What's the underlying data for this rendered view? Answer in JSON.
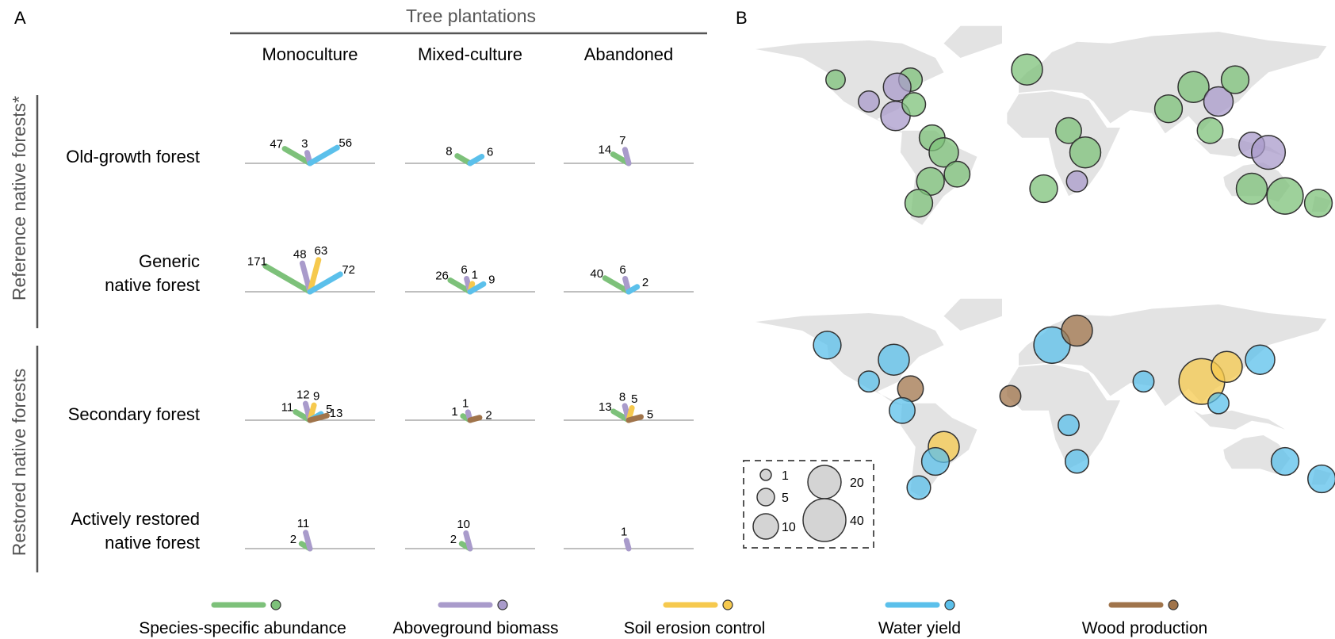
{
  "panels": {
    "a": "A",
    "b": "B"
  },
  "header": {
    "group": "Tree plantations",
    "columns": [
      "Monoculture",
      "Mixed-culture",
      "Abandoned"
    ]
  },
  "side_labels": {
    "reference": "Reference native forests*",
    "restored": "Restored native forests"
  },
  "rows": [
    {
      "label_lines": [
        "Old-growth forest"
      ]
    },
    {
      "label_lines": [
        "Generic",
        "native forest"
      ]
    },
    {
      "label_lines": [
        "Secondary forest"
      ]
    },
    {
      "label_lines": [
        "Actively restored",
        "native forest"
      ]
    }
  ],
  "legend": [
    {
      "key": "abund",
      "label": "Species-specific abundance",
      "color": "#7DC17A"
    },
    {
      "key": "biomass",
      "label": "Aboveground biomass",
      "color": "#A99BCB"
    },
    {
      "key": "soil",
      "label": "Soil erosion control",
      "color": "#F6C94E"
    },
    {
      "key": "water",
      "label": "Water yield",
      "color": "#5BC0EB"
    },
    {
      "key": "wood",
      "label": "Wood production",
      "color": "#A0744B"
    }
  ],
  "size_legend": [
    {
      "value": 1,
      "label": "1"
    },
    {
      "value": 5,
      "label": "5"
    },
    {
      "value": 10,
      "label": "10"
    },
    {
      "value": 20,
      "label": "20"
    },
    {
      "value": 40,
      "label": "40"
    }
  ],
  "chart_data": [
    {
      "type": "radial-fan",
      "description_note": "",
      "rows": [
        "Old-growth forest",
        "Generic native forest",
        "Secondary forest",
        "Actively restored native forest"
      ],
      "columns": [
        "Monoculture",
        "Mixed-culture",
        "Abandoned"
      ],
      "cells": [
        {
          "row": 0,
          "col": 0,
          "values": {
            "abund": "47",
            "biomass": "3",
            "water": "56"
          }
        },
        {
          "row": 0,
          "col": 1,
          "values": {
            "abund": "8",
            "water": "6"
          }
        },
        {
          "row": 0,
          "col": 2,
          "values": {
            "abund": "14",
            "biomass": "7"
          }
        },
        {
          "row": 1,
          "col": 0,
          "values": {
            "abund": "171",
            "biomass": "48",
            "soil": "63",
            "water": "72"
          }
        },
        {
          "row": 1,
          "col": 1,
          "values": {
            "abund": "26",
            "biomass": "6",
            "soil": "1",
            "water": "9"
          }
        },
        {
          "row": 1,
          "col": 2,
          "values": {
            "abund": "40",
            "biomass": "6",
            "water": "2"
          }
        },
        {
          "row": 2,
          "col": 0,
          "values": {
            "abund": "11",
            "biomass": "12",
            "soil": "9",
            "water": "5",
            "wood": "13"
          }
        },
        {
          "row": 2,
          "col": 1,
          "values": {
            "abund": "1",
            "biomass": "1",
            "wood": "2"
          }
        },
        {
          "row": 2,
          "col": 2,
          "values": {
            "abund": "13",
            "biomass": "8",
            "soil": "5",
            "wood": "5"
          }
        },
        {
          "row": 3,
          "col": 0,
          "values": {
            "abund": "2",
            "biomass": "11"
          }
        },
        {
          "row": 3,
          "col": 1,
          "values": {
            "abund": "2",
            "biomass": "10"
          }
        },
        {
          "row": 3,
          "col": 2,
          "values": {
            "biomass": "1"
          }
        }
      ]
    },
    {
      "type": "scatter",
      "map": "reference",
      "points": [
        {
          "lon": -75,
          "lat": 45,
          "n": 6,
          "cat": "abund"
        },
        {
          "lon": -83,
          "lat": 40,
          "n": 10,
          "cat": "biomass"
        },
        {
          "lon": -120,
          "lat": 45,
          "n": 3,
          "cat": "abund"
        },
        {
          "lon": -100,
          "lat": 30,
          "n": 4,
          "cat": "biomass"
        },
        {
          "lon": -84,
          "lat": 20,
          "n": 12,
          "cat": "biomass"
        },
        {
          "lon": -73,
          "lat": 28,
          "n": 6,
          "cat": "abund"
        },
        {
          "lon": -62,
          "lat": 5,
          "n": 8,
          "cat": "abund"
        },
        {
          "lon": -55,
          "lat": -5,
          "n": 12,
          "cat": "abund"
        },
        {
          "lon": -47,
          "lat": -20,
          "n": 8,
          "cat": "abund"
        },
        {
          "lon": -63,
          "lat": -25,
          "n": 10,
          "cat": "abund"
        },
        {
          "lon": -70,
          "lat": -40,
          "n": 10,
          "cat": "abund"
        },
        {
          "lon": -5,
          "lat": 52,
          "n": 14,
          "cat": "abund"
        },
        {
          "lon": 20,
          "lat": 10,
          "n": 8,
          "cat": "abund"
        },
        {
          "lon": 30,
          "lat": -5,
          "n": 14,
          "cat": "abund"
        },
        {
          "lon": 25,
          "lat": -25,
          "n": 4,
          "cat": "biomass"
        },
        {
          "lon": 5,
          "lat": -30,
          "n": 10,
          "cat": "abund"
        },
        {
          "lon": 80,
          "lat": 25,
          "n": 10,
          "cat": "abund"
        },
        {
          "lon": 95,
          "lat": 40,
          "n": 14,
          "cat": "abund"
        },
        {
          "lon": 110,
          "lat": 30,
          "n": 12,
          "cat": "biomass"
        },
        {
          "lon": 120,
          "lat": 45,
          "n": 10,
          "cat": "abund"
        },
        {
          "lon": 105,
          "lat": 10,
          "n": 8,
          "cat": "abund"
        },
        {
          "lon": 130,
          "lat": 0,
          "n": 8,
          "cat": "biomass"
        },
        {
          "lon": 140,
          "lat": -5,
          "n": 18,
          "cat": "biomass"
        },
        {
          "lon": 130,
          "lat": -30,
          "n": 14,
          "cat": "abund"
        },
        {
          "lon": 150,
          "lat": -35,
          "n": 22,
          "cat": "abund"
        },
        {
          "lon": 170,
          "lat": -40,
          "n": 10,
          "cat": "abund"
        }
      ]
    },
    {
      "type": "scatter",
      "map": "restored",
      "points": [
        {
          "lon": -125,
          "lat": 50,
          "n": 10,
          "cat": "water"
        },
        {
          "lon": -85,
          "lat": 40,
          "n": 14,
          "cat": "water"
        },
        {
          "lon": -100,
          "lat": 25,
          "n": 4,
          "cat": "water"
        },
        {
          "lon": -75,
          "lat": 20,
          "n": 8,
          "cat": "wood"
        },
        {
          "lon": -80,
          "lat": 5,
          "n": 8,
          "cat": "water"
        },
        {
          "lon": -55,
          "lat": -20,
          "n": 14,
          "cat": "soil"
        },
        {
          "lon": -60,
          "lat": -30,
          "n": 10,
          "cat": "water"
        },
        {
          "lon": -70,
          "lat": -48,
          "n": 6,
          "cat": "water"
        },
        {
          "lon": 10,
          "lat": 50,
          "n": 22,
          "cat": "water"
        },
        {
          "lon": 25,
          "lat": 60,
          "n": 14,
          "cat": "wood"
        },
        {
          "lon": -15,
          "lat": 15,
          "n": 4,
          "cat": "wood"
        },
        {
          "lon": 20,
          "lat": -5,
          "n": 4,
          "cat": "water"
        },
        {
          "lon": 25,
          "lat": -30,
          "n": 6,
          "cat": "water"
        },
        {
          "lon": 65,
          "lat": 25,
          "n": 4,
          "cat": "water"
        },
        {
          "lon": 100,
          "lat": 25,
          "n": 40,
          "cat": "soil"
        },
        {
          "lon": 115,
          "lat": 35,
          "n": 14,
          "cat": "soil"
        },
        {
          "lon": 135,
          "lat": 40,
          "n": 12,
          "cat": "water"
        },
        {
          "lon": 110,
          "lat": 10,
          "n": 4,
          "cat": "water"
        },
        {
          "lon": 150,
          "lat": -30,
          "n": 10,
          "cat": "water"
        },
        {
          "lon": 172,
          "lat": -42,
          "n": 10,
          "cat": "water"
        }
      ]
    }
  ]
}
